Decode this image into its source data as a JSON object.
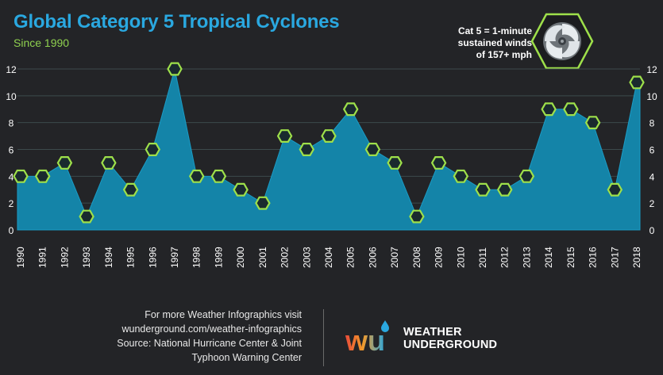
{
  "header": {
    "title": "Global Category 5 Tropical Cyclones",
    "subtitle": "Since 1990"
  },
  "note": {
    "lines": [
      "Cat 5 = 1-minute",
      "sustained winds",
      "of 157+ mph"
    ]
  },
  "footer": {
    "lines": [
      "For more Weather Infographics visit",
      "wunderground.com/weather-infographics",
      "Source: National Hurricane Center & Joint",
      "Typhoon Warning Center"
    ]
  },
  "brand": {
    "line1": "WEATHER",
    "line2": "UNDERGROUND",
    "logo_text": "wu"
  },
  "colors": {
    "background": "#232427",
    "title": "#2aa8e0",
    "subtitle": "#8fd14f",
    "area_fill": "#1484a8",
    "marker_stroke": "#9ee04a",
    "grid": "#3c4a4c"
  },
  "chart_data": {
    "type": "area",
    "title": "Global Category 5 Tropical Cyclones",
    "subtitle": "Since 1990",
    "categories": [
      "1990",
      "1991",
      "1992",
      "1993",
      "1994",
      "1995",
      "1996",
      "1997",
      "1998",
      "1999",
      "2000",
      "2001",
      "2002",
      "2003",
      "2004",
      "2005",
      "2006",
      "2007",
      "2008",
      "2009",
      "2010",
      "2011",
      "2012",
      "2013",
      "2014",
      "2015",
      "2016",
      "2017",
      "2018"
    ],
    "values": [
      4,
      4,
      5,
      1,
      5,
      3,
      6,
      12,
      4,
      4,
      3,
      2,
      7,
      6,
      7,
      9,
      6,
      5,
      1,
      5,
      4,
      3,
      3,
      4,
      9,
      9,
      8,
      3,
      11
    ],
    "ylim": [
      0,
      12
    ],
    "yticks": [
      0,
      2,
      4,
      6,
      8,
      10,
      12
    ],
    "xlabel": "",
    "ylabel": "",
    "grid": true,
    "markers": "hexagon"
  }
}
